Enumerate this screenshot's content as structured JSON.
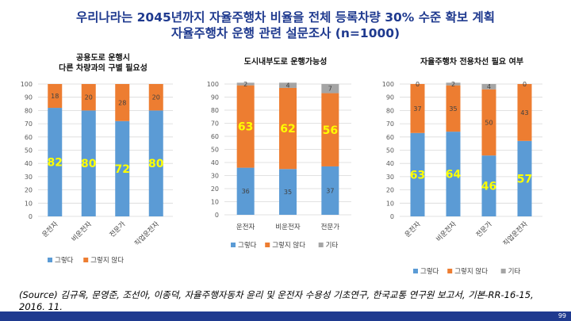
{
  "title_line1": "우리나라는 2045년까지 자율주행차 비율을 전체 등록차량 30% 수준 확보 계획",
  "title_line2": "자율주행차 운행 관련 설문조사 (n=1000)",
  "source_text": "(Source) 김규옥, 문영준, 조선아, 이종덕, 자율주행자동차 윤리 및 운전자 수용성 기초연구, 한국교통 연구원 보고서, 기본-RR-16-15, 2016. 11.",
  "page_number": "99",
  "colors": {
    "yes": "#5b9bd5",
    "no": "#ed7d31",
    "other": "#a5a5a5",
    "title": "#1f3a8f",
    "big_label": "#ffff00"
  },
  "chart_data": [
    {
      "type": "bar",
      "stacked": true,
      "title_lines": [
        "공용도로 운행시",
        "다른 차량과의 구별 필요성"
      ],
      "categories": [
        "운전자",
        "비운전자",
        "전문가",
        "직업운전자"
      ],
      "series": [
        {
          "name": "그렇다",
          "values": [
            82,
            80,
            72,
            80
          ]
        },
        {
          "name": "그렇지 않다",
          "values": [
            18,
            20,
            28,
            20
          ]
        }
      ],
      "ylim": [
        0,
        100
      ],
      "yticks": [
        0,
        10,
        20,
        30,
        40,
        50,
        60,
        70,
        80,
        90,
        100
      ],
      "legend": "bottom"
    },
    {
      "type": "bar",
      "stacked": true,
      "title_lines": [
        "도시내부도로 운행가능성"
      ],
      "categories": [
        "운전자",
        "비운전자",
        "전문가"
      ],
      "series": [
        {
          "name": "그렇다",
          "values": [
            36,
            35,
            37
          ]
        },
        {
          "name": "그렇지 않다",
          "values": [
            63,
            62,
            56
          ]
        },
        {
          "name": "기타",
          "values": [
            2,
            4,
            7
          ]
        }
      ],
      "ylim": [
        0,
        100
      ],
      "yticks": [
        0,
        10,
        20,
        30,
        40,
        50,
        60,
        70,
        80,
        90,
        100
      ],
      "legend": "bottom"
    },
    {
      "type": "bar",
      "stacked": true,
      "title_lines": [
        "자율주행차 전용차선 필요 여부"
      ],
      "categories": [
        "운전자",
        "비운전자",
        "전문가",
        "직업운전자"
      ],
      "series": [
        {
          "name": "그렇다",
          "values": [
            63,
            64,
            46,
            57
          ]
        },
        {
          "name": "그렇지 않다",
          "values": [
            37,
            35,
            50,
            43
          ]
        },
        {
          "name": "기타",
          "values": [
            0,
            2,
            4,
            0
          ]
        }
      ],
      "ylim": [
        0,
        100
      ],
      "yticks": [
        0,
        10,
        20,
        30,
        40,
        50,
        60,
        70,
        80,
        90,
        100
      ],
      "legend": "bottom"
    }
  ]
}
